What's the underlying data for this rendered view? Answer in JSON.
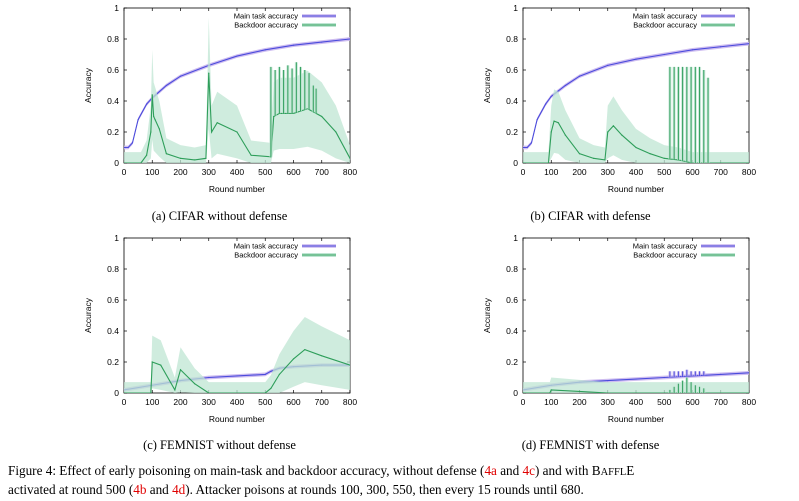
{
  "chart_data": [
    {
      "type": "line",
      "id": "a",
      "subcaption": "(a) CIFAR without defense",
      "xlabel": "Round number",
      "ylabel": "Accuracy",
      "xlim": [
        0,
        800
      ],
      "ylim": [
        0,
        1
      ],
      "xticks": [
        "0",
        "100",
        "200",
        "300",
        "400",
        "500",
        "600",
        "700",
        "800"
      ],
      "yticks": [
        "0",
        "0.2",
        "0.4",
        "0.6",
        "0.8",
        "1"
      ],
      "legend": [
        "Main task accuracy",
        "Backdoor accuracy"
      ],
      "legend_position": "top-right",
      "series": [
        {
          "name": "Main task accuracy",
          "color": "#4b4bdc",
          "band": "#c9b6ee",
          "x": [
            0,
            15,
            30,
            50,
            80,
            100,
            150,
            200,
            300,
            400,
            500,
            600,
            700,
            800
          ],
          "y": [
            0.1,
            0.1,
            0.13,
            0.28,
            0.38,
            0.42,
            0.5,
            0.56,
            0.63,
            0.69,
            0.73,
            0.76,
            0.78,
            0.8
          ]
        },
        {
          "name": "Backdoor accuracy",
          "color": "#2e9e5a",
          "band": "#bfe5d3",
          "x": [
            0,
            60,
            80,
            95,
            100,
            105,
            110,
            125,
            150,
            200,
            250,
            290,
            300,
            310,
            330,
            400,
            450,
            520,
            530,
            550,
            600,
            650,
            700,
            750,
            800
          ],
          "y": [
            0,
            0,
            0.05,
            0.2,
            0.44,
            0.3,
            0.28,
            0.22,
            0.06,
            0.03,
            0.02,
            0.03,
            0.58,
            0.2,
            0.26,
            0.2,
            0.05,
            0.04,
            0.3,
            0.32,
            0.32,
            0.35,
            0.3,
            0.2,
            0.03
          ],
          "spikes": [
            {
              "x": 520,
              "y": 0.62
            },
            {
              "x": 535,
              "y": 0.6
            },
            {
              "x": 550,
              "y": 0.62
            },
            {
              "x": 565,
              "y": 0.6
            },
            {
              "x": 580,
              "y": 0.63
            },
            {
              "x": 595,
              "y": 0.61
            },
            {
              "x": 610,
              "y": 0.65
            },
            {
              "x": 625,
              "y": 0.62
            },
            {
              "x": 640,
              "y": 0.6
            },
            {
              "x": 655,
              "y": 0.58
            },
            {
              "x": 670,
              "y": 0.5
            },
            {
              "x": 680,
              "y": 0.48
            }
          ]
        }
      ]
    },
    {
      "type": "line",
      "id": "b",
      "subcaption": "(b) CIFAR with defense",
      "xlabel": "Round number",
      "ylabel": "Accuracy",
      "xlim": [
        0,
        800
      ],
      "ylim": [
        0,
        1
      ],
      "xticks": [
        "0",
        "100",
        "200",
        "300",
        "400",
        "500",
        "600",
        "700",
        "800"
      ],
      "yticks": [
        "0",
        "0.2",
        "0.4",
        "0.6",
        "0.8",
        "1"
      ],
      "legend": [
        "Main task accuracy",
        "Backdoor accuracy"
      ],
      "legend_position": "top-right",
      "series": [
        {
          "name": "Main task accuracy",
          "color": "#4b4bdc",
          "band": "#c9b6ee",
          "x": [
            0,
            15,
            30,
            50,
            80,
            100,
            150,
            200,
            300,
            400,
            500,
            600,
            700,
            800
          ],
          "y": [
            0.1,
            0.1,
            0.13,
            0.28,
            0.38,
            0.43,
            0.5,
            0.56,
            0.63,
            0.67,
            0.7,
            0.73,
            0.75,
            0.77
          ]
        },
        {
          "name": "Backdoor accuracy",
          "color": "#2e9e5a",
          "band": "#bfe5d3",
          "x": [
            0,
            90,
            100,
            110,
            125,
            150,
            200,
            250,
            290,
            300,
            320,
            350,
            400,
            450,
            500,
            550,
            600,
            650,
            700,
            800
          ],
          "y": [
            0,
            0,
            0.2,
            0.27,
            0.26,
            0.18,
            0.06,
            0.03,
            0.02,
            0.2,
            0.24,
            0.18,
            0.1,
            0.06,
            0.03,
            0.02,
            0,
            0,
            0,
            0
          ],
          "spikes": [
            {
              "x": 520,
              "y": 0.62
            },
            {
              "x": 535,
              "y": 0.62
            },
            {
              "x": 550,
              "y": 0.62
            },
            {
              "x": 565,
              "y": 0.62
            },
            {
              "x": 580,
              "y": 0.62
            },
            {
              "x": 595,
              "y": 0.62
            },
            {
              "x": 610,
              "y": 0.62
            },
            {
              "x": 625,
              "y": 0.62
            },
            {
              "x": 640,
              "y": 0.6
            },
            {
              "x": 655,
              "y": 0.55
            }
          ]
        }
      ]
    },
    {
      "type": "line",
      "id": "c",
      "subcaption": "(c) FEMNIST without defense",
      "xlabel": "Round number",
      "ylabel": "Accuracy",
      "xlim": [
        0,
        800
      ],
      "ylim": [
        0,
        1
      ],
      "xticks": [
        "0",
        "100",
        "200",
        "300",
        "400",
        "500",
        "600",
        "700",
        "800"
      ],
      "yticks": [
        "0",
        "0.2",
        "0.4",
        "0.6",
        "0.8",
        "1"
      ],
      "legend": [
        "Main task accuracy",
        "Backdoor accuracy"
      ],
      "legend_position": "top-right",
      "series": [
        {
          "name": "Main task accuracy",
          "color": "#4b4bdc",
          "band": "#c9b6ee",
          "x": [
            0,
            100,
            200,
            300,
            400,
            500,
            520,
            550,
            600,
            700,
            800
          ],
          "y": [
            0.02,
            0.05,
            0.08,
            0.1,
            0.11,
            0.12,
            0.14,
            0.16,
            0.17,
            0.18,
            0.18
          ]
        },
        {
          "name": "Backdoor accuracy",
          "color": "#2e9e5a",
          "band": "#bfe5d3",
          "x": [
            0,
            95,
            100,
            130,
            180,
            200,
            250,
            300,
            500,
            520,
            550,
            600,
            640,
            700,
            800
          ],
          "y": [
            0,
            0,
            0.2,
            0.18,
            0.02,
            0.15,
            0.06,
            0,
            0,
            0.03,
            0.12,
            0.22,
            0.28,
            0.24,
            0.18
          ]
        }
      ]
    },
    {
      "type": "line",
      "id": "d",
      "subcaption": "(d) FEMNIST with defense",
      "xlabel": "Round number",
      "ylabel": "Accuracy",
      "xlim": [
        0,
        800
      ],
      "ylim": [
        0,
        1
      ],
      "xticks": [
        "0",
        "100",
        "200",
        "300",
        "400",
        "500",
        "600",
        "700",
        "800"
      ],
      "yticks": [
        "0",
        "0.2",
        "0.4",
        "0.6",
        "0.8",
        "1"
      ],
      "legend": [
        "Main task accuracy",
        "Backdoor accuracy"
      ],
      "legend_position": "top-right",
      "series": [
        {
          "name": "Main task accuracy",
          "color": "#4b4bdc",
          "band": "#c9b6ee",
          "x": [
            0,
            100,
            200,
            300,
            400,
            500,
            600,
            700,
            800
          ],
          "y": [
            0.02,
            0.05,
            0.07,
            0.08,
            0.09,
            0.1,
            0.11,
            0.12,
            0.13
          ],
          "spikes": [
            {
              "x": 520,
              "y": 0.14
            },
            {
              "x": 535,
              "y": 0.14
            },
            {
              "x": 550,
              "y": 0.14
            },
            {
              "x": 565,
              "y": 0.14
            },
            {
              "x": 580,
              "y": 0.15
            },
            {
              "x": 595,
              "y": 0.14
            },
            {
              "x": 610,
              "y": 0.14
            },
            {
              "x": 625,
              "y": 0.14
            },
            {
              "x": 640,
              "y": 0.14
            }
          ]
        },
        {
          "name": "Backdoor accuracy",
          "color": "#2e9e5a",
          "band": "#bfe5d3",
          "x": [
            0,
            95,
            100,
            200,
            300,
            400,
            500,
            800
          ],
          "y": [
            0,
            0,
            0.02,
            0.01,
            0,
            0,
            0,
            0
          ],
          "spikes": [
            {
              "x": 520,
              "y": 0.02
            },
            {
              "x": 535,
              "y": 0.04
            },
            {
              "x": 550,
              "y": 0.06
            },
            {
              "x": 565,
              "y": 0.08
            },
            {
              "x": 580,
              "y": 0.1
            },
            {
              "x": 595,
              "y": 0.07
            },
            {
              "x": 610,
              "y": 0.05
            },
            {
              "x": 625,
              "y": 0.04
            },
            {
              "x": 640,
              "y": 0.03
            }
          ]
        }
      ]
    }
  ],
  "figure_caption": {
    "part1": "Figure 4: Effect of early poisoning on main-task and backdoor accuracy, without defense (",
    "ref_4a": "4a",
    "and1": " and ",
    "ref_4c": "4c",
    "part2": ") and with B",
    "baffle_small": "AFFL",
    "baffle_e": "E",
    "line2_start": "activated at round 500 (",
    "ref_4b": "4b",
    "and2": " and ",
    "ref_4d": "4d",
    "line2_end": "). Attacker poisons at rounds 100, 300, 550, then every 15 rounds until 680."
  }
}
